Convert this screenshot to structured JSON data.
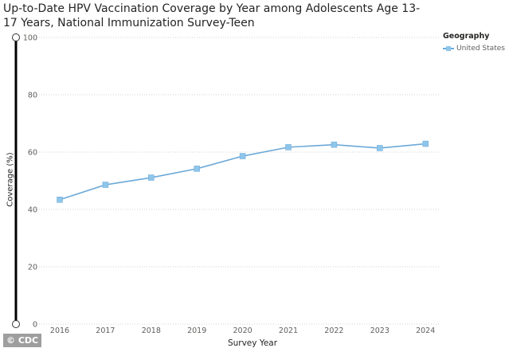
{
  "chart_data": {
    "type": "line",
    "title": "Up-to-Date HPV Vaccination Coverage by Year among Adolescents Age 13-17 Years, National Immunization Survey-Teen",
    "xlabel": "Survey Year",
    "ylabel": "Coverage (%)",
    "categories": [
      "2016",
      "2017",
      "2018",
      "2019",
      "2020",
      "2021",
      "2022",
      "2023",
      "2024"
    ],
    "series": [
      {
        "name": "United States",
        "values": [
          43.4,
          48.6,
          51.1,
          54.2,
          58.6,
          61.7,
          62.6,
          61.4,
          62.9
        ],
        "color": "#8ec5ea",
        "line_color": "#6ca9d8"
      }
    ],
    "yticks": [
      0,
      20,
      40,
      60,
      80,
      100
    ],
    "ylim": [
      0,
      100
    ],
    "grid": true,
    "legend": {
      "title": "Geography",
      "position": "top-right"
    }
  },
  "watermark": "© CDC"
}
